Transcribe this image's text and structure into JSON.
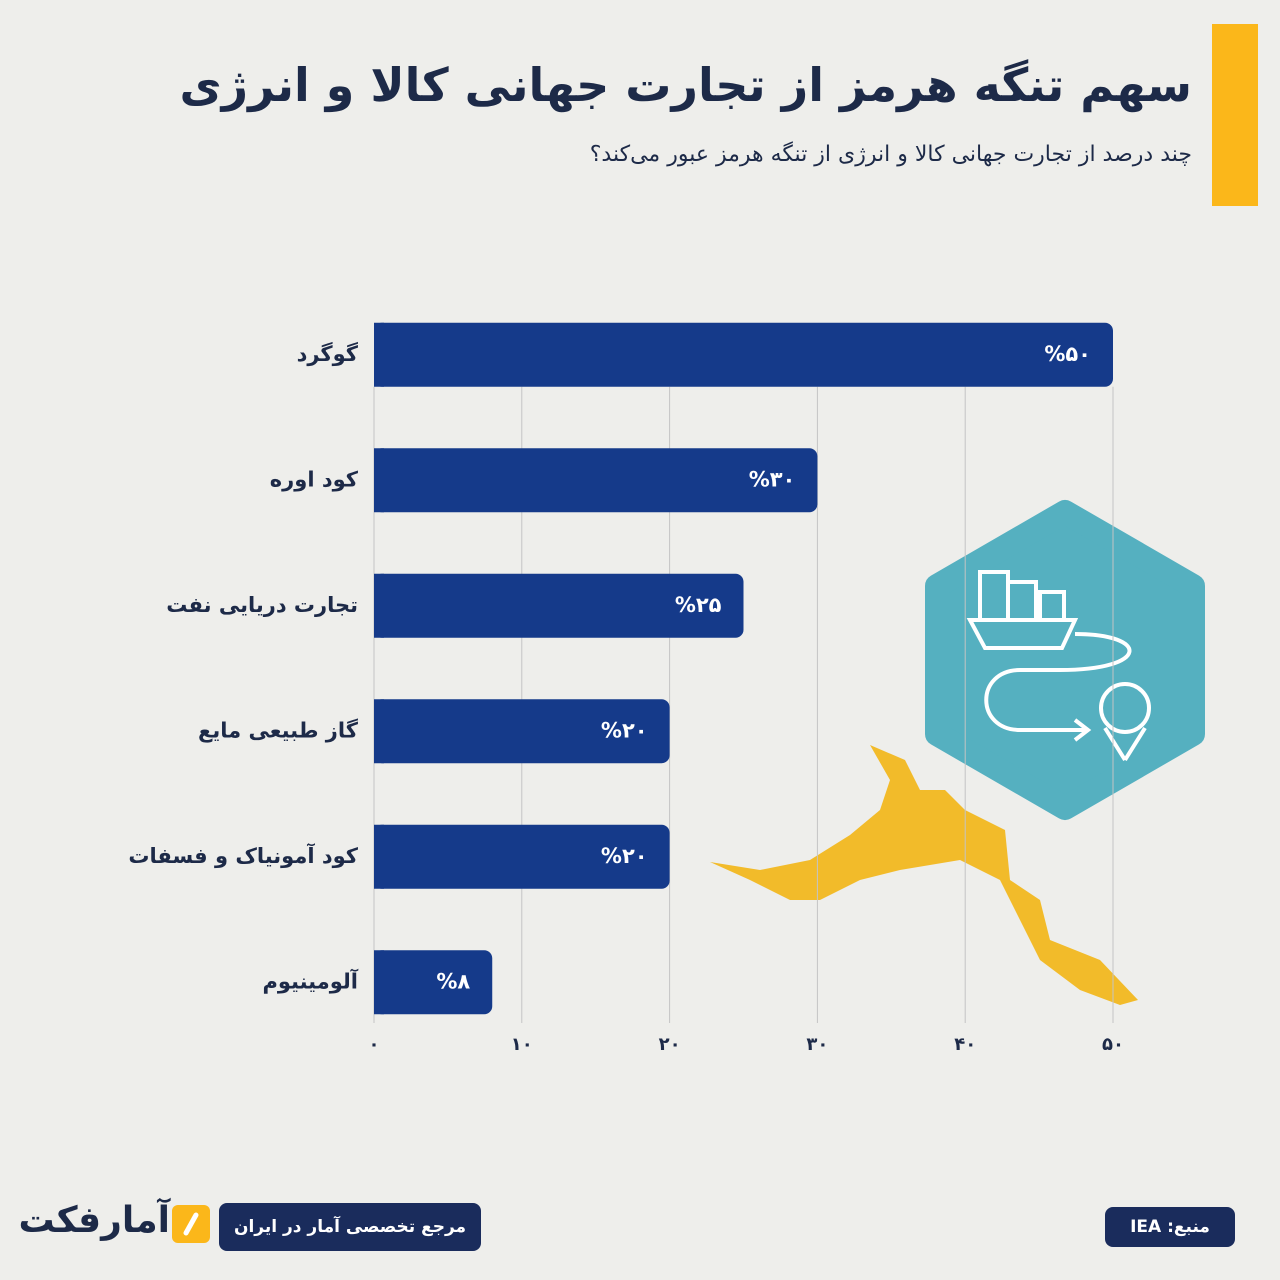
{
  "chart_data": {
    "type": "hbar",
    "title": "سهم تنگه هرمز از تجارت جهانی کالا و انرژی",
    "subtitle": "چند درصد از تجارت جهانی کالا و انرژی از تنگه هرمز عبور می‌کند؟",
    "categories": [
      "گوگرد",
      "کود اوره",
      "تجارت دریایی نفت",
      "گاز طبیعی مایع",
      "کود آمونیاک و فسفات",
      "آلومینیوم"
    ],
    "values": [
      50,
      30,
      25,
      20,
      20,
      8
    ],
    "value_labels": [
      "%۵۰",
      "%۳۰",
      "%۲۵",
      "%۲۰",
      "%۲۰",
      "%۸"
    ],
    "color": "#153a8a",
    "xlim": [
      0,
      50
    ],
    "xticks": [
      {
        "value": 0,
        "label": "۰"
      },
      {
        "value": 10,
        "label": "۱۰"
      },
      {
        "value": 20,
        "label": "۲۰"
      },
      {
        "value": 30,
        "label": "۳۰"
      },
      {
        "value": 40,
        "label": "۴۰"
      },
      {
        "value": 50,
        "label": "۵۰"
      }
    ],
    "grid": true
  },
  "footer": {
    "source": "منبع: IEA",
    "tagline": "مرجع تخصصی آمار در ایران",
    "brand": "آمارفکت"
  }
}
